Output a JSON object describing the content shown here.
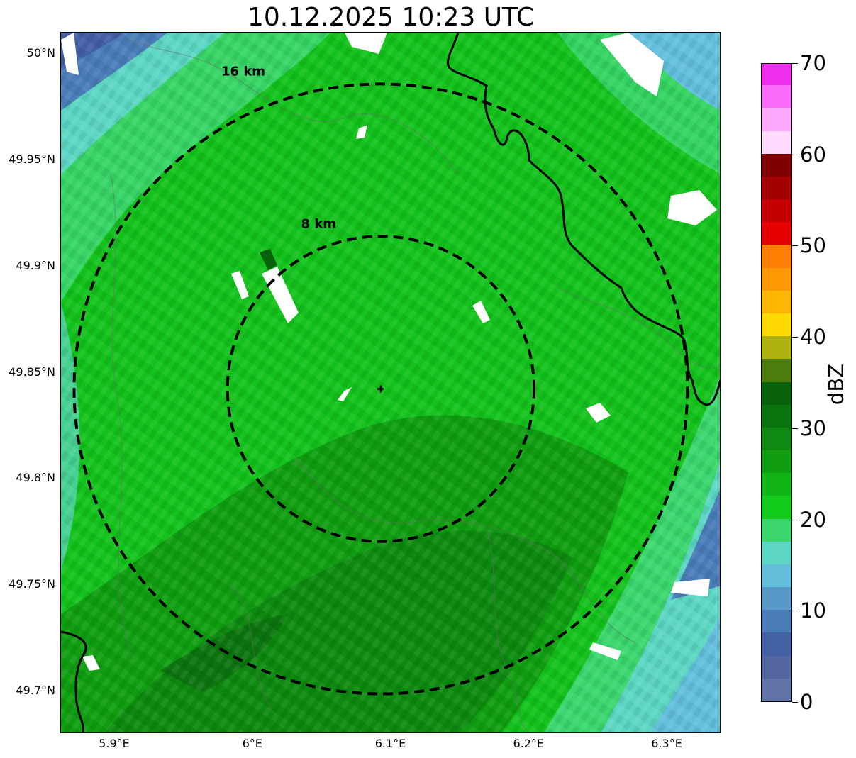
{
  "title": "10.12.2025 10:23 UTC",
  "map": {
    "extent": {
      "lon_min": 5.861,
      "lon_max": 6.339,
      "lat_min": 49.68,
      "lat_max": 50.01
    },
    "center": {
      "lon": 6.093,
      "lat": 49.842
    },
    "range_rings": [
      {
        "label": "8 km",
        "lon_radius": 0.111,
        "lat_radius": 0.0718
      },
      {
        "label": "16 km",
        "lon_radius": 0.222,
        "lat_radius": 0.1435
      }
    ],
    "lat_ticks": [
      "50°N",
      "49.95°N",
      "49.9°N",
      "49.85°N",
      "49.8°N",
      "49.75°N",
      "49.7°N"
    ],
    "lat_values": [
      50.0,
      49.95,
      49.9,
      49.85,
      49.8,
      49.75,
      49.7
    ],
    "lon_ticks": [
      "5.9°E",
      "6°E",
      "6.1°E",
      "6.2°E",
      "6.3°E"
    ],
    "lon_values": [
      5.9,
      6.0,
      6.1,
      6.2,
      6.3
    ],
    "background_field": "radar reflectivity (mostly 15–30 dBZ)"
  },
  "colorbar": {
    "label": "dBZ",
    "min": 0,
    "max": 70,
    "tick_labels": [
      "0",
      "10",
      "20",
      "30",
      "40",
      "50",
      "60",
      "70"
    ],
    "tick_values": [
      0,
      10,
      20,
      30,
      40,
      50,
      60,
      70
    ],
    "colors": [
      "#6273a7",
      "#5366a0",
      "#4360a6",
      "#4a7db8",
      "#5899c7",
      "#63bedb",
      "#5dd5c3",
      "#3cd66e",
      "#11ca19",
      "#11b616",
      "#109d11",
      "#0d8a0f",
      "#0c740e",
      "#08620b",
      "#4b7c0c",
      "#adb20c",
      "#fdd801",
      "#fcb602",
      "#fe9802",
      "#fe7e02",
      "#e70000",
      "#c40000",
      "#a30000",
      "#800000",
      "#fedbfe",
      "#fda9fd",
      "#fc6afc",
      "#f12ef0"
    ]
  }
}
